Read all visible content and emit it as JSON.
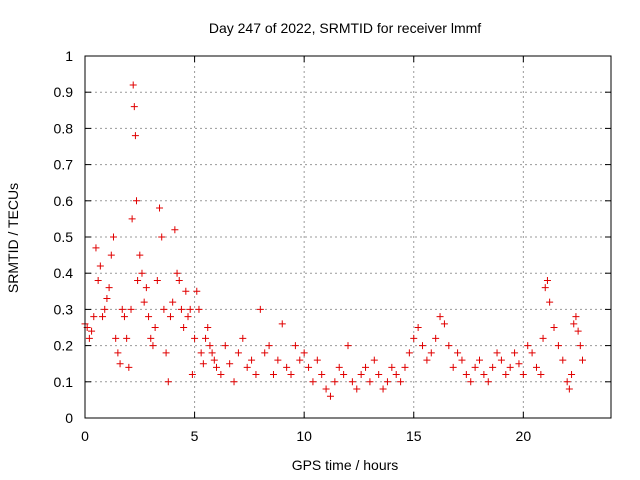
{
  "chart_data": {
    "type": "scatter",
    "title": "Day 247 of 2022, SRMTID for receiver lmmf",
    "xlabel": "GPS time / hours",
    "ylabel": "SRMTID / TECUs",
    "xlim": [
      0,
      24
    ],
    "ylim": [
      0,
      1
    ],
    "xticks": [
      "0",
      "5",
      "10",
      "15",
      "20"
    ],
    "xtick_values": [
      0,
      5,
      10,
      15,
      20
    ],
    "yticks": [
      "0",
      "0.1",
      "0.2",
      "0.3",
      "0.4",
      "0.5",
      "0.6",
      "0.7",
      "0.8",
      "0.9",
      "1"
    ],
    "ytick_values": [
      0,
      0.1,
      0.2,
      0.3,
      0.4,
      0.5,
      0.6,
      0.7,
      0.8,
      0.9,
      1.0
    ],
    "grid": true,
    "marker": "+",
    "color": "#e00000",
    "series": [
      {
        "name": "SRMTID",
        "x": [
          0.0,
          0.1,
          0.2,
          0.3,
          0.4,
          0.5,
          0.6,
          0.7,
          0.8,
          0.9,
          1.0,
          1.1,
          1.2,
          1.3,
          1.4,
          1.5,
          1.6,
          1.7,
          1.8,
          1.9,
          2.0,
          2.1,
          2.15,
          2.2,
          2.25,
          2.3,
          2.35,
          2.4,
          2.5,
          2.6,
          2.7,
          2.8,
          2.9,
          3.0,
          3.1,
          3.2,
          3.3,
          3.4,
          3.5,
          3.6,
          3.7,
          3.8,
          3.9,
          4.0,
          4.1,
          4.2,
          4.3,
          4.4,
          4.5,
          4.6,
          4.7,
          4.8,
          4.9,
          5.0,
          5.1,
          5.2,
          5.3,
          5.4,
          5.5,
          5.6,
          5.7,
          5.8,
          5.9,
          6.0,
          6.2,
          6.4,
          6.6,
          6.8,
          7.0,
          7.2,
          7.4,
          7.6,
          7.8,
          8.0,
          8.2,
          8.4,
          8.6,
          8.8,
          9.0,
          9.2,
          9.4,
          9.6,
          9.8,
          10.0,
          10.2,
          10.4,
          10.6,
          10.8,
          11.0,
          11.2,
          11.4,
          11.6,
          11.8,
          12.0,
          12.2,
          12.4,
          12.6,
          12.8,
          13.0,
          13.2,
          13.4,
          13.6,
          13.8,
          14.0,
          14.2,
          14.4,
          14.6,
          14.8,
          15.0,
          15.2,
          15.4,
          15.6,
          15.8,
          16.0,
          16.2,
          16.4,
          16.6,
          16.8,
          17.0,
          17.2,
          17.4,
          17.6,
          17.8,
          18.0,
          18.2,
          18.4,
          18.6,
          18.8,
          19.0,
          19.2,
          19.4,
          19.6,
          19.8,
          20.0,
          20.2,
          20.4,
          20.6,
          20.8,
          20.9,
          21.0,
          21.1,
          21.2,
          21.4,
          21.6,
          21.8,
          22.0,
          22.1,
          22.2,
          22.3,
          22.4,
          22.5,
          22.6,
          22.7
        ],
        "y": [
          0.26,
          0.25,
          0.22,
          0.24,
          0.28,
          0.47,
          0.38,
          0.42,
          0.28,
          0.3,
          0.33,
          0.36,
          0.45,
          0.5,
          0.22,
          0.18,
          0.15,
          0.3,
          0.28,
          0.22,
          0.14,
          0.3,
          0.55,
          0.92,
          0.86,
          0.78,
          0.6,
          0.38,
          0.45,
          0.4,
          0.32,
          0.36,
          0.28,
          0.22,
          0.2,
          0.25,
          0.38,
          0.58,
          0.5,
          0.3,
          0.18,
          0.1,
          0.28,
          0.32,
          0.52,
          0.4,
          0.38,
          0.3,
          0.25,
          0.35,
          0.28,
          0.3,
          0.12,
          0.22,
          0.35,
          0.3,
          0.18,
          0.15,
          0.22,
          0.25,
          0.2,
          0.18,
          0.16,
          0.14,
          0.12,
          0.2,
          0.15,
          0.1,
          0.18,
          0.22,
          0.14,
          0.16,
          0.12,
          0.3,
          0.18,
          0.2,
          0.12,
          0.16,
          0.26,
          0.14,
          0.12,
          0.2,
          0.16,
          0.18,
          0.14,
          0.1,
          0.16,
          0.12,
          0.08,
          0.06,
          0.1,
          0.14,
          0.12,
          0.2,
          0.1,
          0.08,
          0.12,
          0.14,
          0.1,
          0.16,
          0.12,
          0.08,
          0.1,
          0.14,
          0.12,
          0.1,
          0.14,
          0.18,
          0.22,
          0.25,
          0.2,
          0.16,
          0.18,
          0.22,
          0.28,
          0.26,
          0.2,
          0.14,
          0.18,
          0.16,
          0.12,
          0.1,
          0.14,
          0.16,
          0.12,
          0.1,
          0.14,
          0.18,
          0.16,
          0.12,
          0.14,
          0.18,
          0.15,
          0.12,
          0.2,
          0.18,
          0.14,
          0.12,
          0.22,
          0.36,
          0.38,
          0.32,
          0.25,
          0.2,
          0.16,
          0.1,
          0.08,
          0.12,
          0.26,
          0.28,
          0.24,
          0.2,
          0.16
        ]
      }
    ]
  }
}
